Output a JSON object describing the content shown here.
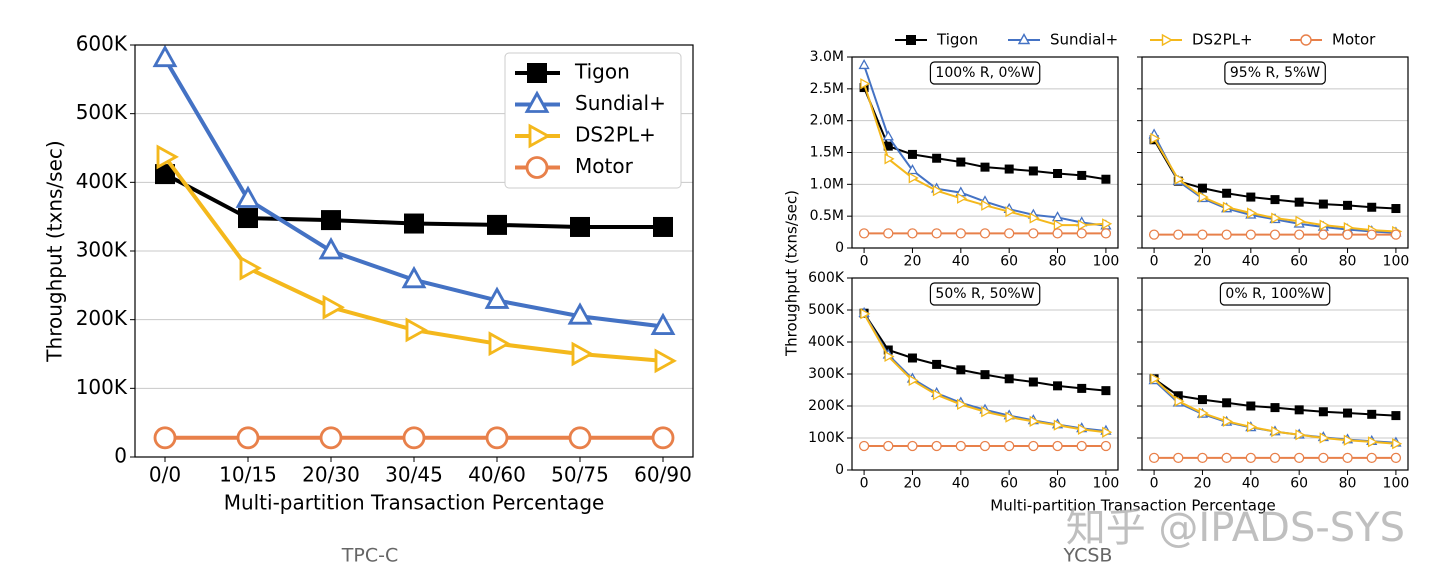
{
  "chart_data": [
    {
      "type": "line",
      "ylabel": "Throughput (txns/sec)",
      "xlabel": "Multi-partition Transaction Percentage",
      "caption": "TPC-C",
      "categories": [
        "0/0",
        "10/15",
        "20/30",
        "30/45",
        "40/60",
        "50/75",
        "60/90"
      ],
      "ylim": [
        0,
        600000
      ],
      "yticks": [
        0,
        {
          "value": 100000,
          "label": "100K"
        },
        {
          "value": 200000,
          "label": "200K"
        },
        {
          "value": 300000,
          "label": "300K"
        },
        {
          "value": 400000,
          "label": "400K"
        },
        {
          "value": 500000,
          "label": "500K"
        },
        {
          "value": 600000,
          "label": "600K"
        }
      ],
      "grid": true,
      "legend": "upper right",
      "series": [
        {
          "name": "Tigon",
          "color": "#000000",
          "marker": "square",
          "values": [
            412000,
            348000,
            345000,
            340000,
            338000,
            335000,
            335000
          ]
        },
        {
          "name": "Sundial+",
          "color": "#4472c4",
          "marker": "triangle-up",
          "values": [
            580000,
            375000,
            300000,
            258000,
            228000,
            205000,
            190000
          ]
        },
        {
          "name": "DS2PL+",
          "color": "#f4b81c",
          "marker": "triangle-right",
          "values": [
            437000,
            275000,
            218000,
            185000,
            165000,
            150000,
            140000
          ]
        },
        {
          "name": "Motor",
          "color": "#e8804a",
          "marker": "circle",
          "values": [
            28000,
            28000,
            28000,
            28000,
            28000,
            28000,
            28000
          ]
        }
      ]
    },
    {
      "type": "line",
      "ylabel": "Throughput (txns/sec)",
      "xlabel": "Multi-partition Transaction Percentage",
      "caption": "YCSB",
      "legend": "top",
      "grid": true,
      "x": [
        0,
        10,
        20,
        30,
        40,
        50,
        60,
        70,
        80,
        90,
        100
      ],
      "xlim": [
        -5,
        105
      ],
      "xticks": [
        0,
        20,
        40,
        60,
        80,
        100
      ],
      "series": [
        {
          "name": "Tigon",
          "color": "#000000",
          "marker": "square"
        },
        {
          "name": "Sundial+",
          "color": "#4472c4",
          "marker": "triangle-up"
        },
        {
          "name": "DS2PL+",
          "color": "#f4b81c",
          "marker": "triangle-right"
        },
        {
          "name": "Motor",
          "color": "#e8804a",
          "marker": "circle"
        }
      ],
      "rows": [
        {
          "ylim": [
            0,
            3000000
          ],
          "yticks": [
            0,
            {
              "value": 500000,
              "label": "0.5M"
            },
            {
              "value": 1000000,
              "label": "1.0M"
            },
            {
              "value": 1500000,
              "label": "1.5M"
            },
            {
              "value": 2000000,
              "label": "2.0M"
            },
            {
              "value": 2500000,
              "label": "2.5M"
            },
            {
              "value": 3000000,
              "label": "3.0M"
            }
          ],
          "panels": [
            {
              "title": "100% R, 0%W",
              "series": [
                {
                  "values": [
                    2520000,
                    1600000,
                    1470000,
                    1410000,
                    1350000,
                    1270000,
                    1240000,
                    1210000,
                    1170000,
                    1140000,
                    1080000
                  ]
                },
                {
                  "values": [
                    2870000,
                    1750000,
                    1220000,
                    930000,
                    870000,
                    730000,
                    610000,
                    520000,
                    480000,
                    400000,
                    350000
                  ]
                },
                {
                  "values": [
                    2580000,
                    1400000,
                    1100000,
                    900000,
                    780000,
                    670000,
                    570000,
                    470000,
                    360000,
                    360000,
                    380000
                  ]
                },
                {
                  "values": [
                    230000,
                    230000,
                    230000,
                    230000,
                    230000,
                    230000,
                    230000,
                    230000,
                    230000,
                    230000,
                    230000
                  ]
                }
              ]
            },
            {
              "title": "95% R, 5%W",
              "series": [
                {
                  "values": [
                    1700000,
                    1050000,
                    940000,
                    860000,
                    800000,
                    760000,
                    720000,
                    690000,
                    670000,
                    640000,
                    620000
                  ]
                },
                {
                  "values": [
                    1780000,
                    1050000,
                    780000,
                    620000,
                    520000,
                    450000,
                    380000,
                    330000,
                    290000,
                    260000,
                    240000
                  ]
                },
                {
                  "values": [
                    1720000,
                    1080000,
                    800000,
                    640000,
                    550000,
                    470000,
                    420000,
                    360000,
                    320000,
                    280000,
                    260000
                  ]
                },
                {
                  "values": [
                    210000,
                    210000,
                    210000,
                    210000,
                    210000,
                    210000,
                    210000,
                    210000,
                    210000,
                    210000,
                    210000
                  ]
                }
              ]
            }
          ]
        },
        {
          "ylim": [
            0,
            600000
          ],
          "yticks": [
            0,
            {
              "value": 100000,
              "label": "100K"
            },
            {
              "value": 200000,
              "label": "200K"
            },
            {
              "value": 300000,
              "label": "300K"
            },
            {
              "value": 400000,
              "label": "400K"
            },
            {
              "value": 500000,
              "label": "500K"
            },
            {
              "value": 600000,
              "label": "600K"
            }
          ],
          "panels": [
            {
              "title": "50% R, 50%W",
              "series": [
                {
                  "values": [
                    490000,
                    375000,
                    350000,
                    330000,
                    313000,
                    298000,
                    285000,
                    275000,
                    263000,
                    255000,
                    248000
                  ]
                },
                {
                  "values": [
                    490000,
                    360000,
                    285000,
                    240000,
                    210000,
                    188000,
                    170000,
                    155000,
                    142000,
                    130000,
                    122000
                  ]
                },
                {
                  "values": [
                    488000,
                    355000,
                    280000,
                    235000,
                    205000,
                    182000,
                    165000,
                    152000,
                    140000,
                    127000,
                    118000
                  ]
                },
                {
                  "values": [
                    75000,
                    75000,
                    75000,
                    75000,
                    75000,
                    75000,
                    75000,
                    75000,
                    75000,
                    75000,
                    75000
                  ]
                }
              ]
            },
            {
              "title": "0% R, 100%W",
              "series": [
                {
                  "values": [
                    285000,
                    232000,
                    220000,
                    210000,
                    200000,
                    195000,
                    188000,
                    182000,
                    178000,
                    174000,
                    170000
                  ]
                },
                {
                  "values": [
                    280000,
                    210000,
                    175000,
                    150000,
                    133000,
                    120000,
                    110000,
                    102000,
                    95000,
                    90000,
                    85000
                  ]
                },
                {
                  "values": [
                    285000,
                    215000,
                    178000,
                    152000,
                    135000,
                    120000,
                    110000,
                    100000,
                    93000,
                    88000,
                    82000
                  ]
                },
                {
                  "values": [
                    38000,
                    38000,
                    38000,
                    38000,
                    38000,
                    38000,
                    38000,
                    38000,
                    38000,
                    38000,
                    38000
                  ]
                }
              ]
            }
          ]
        }
      ]
    }
  ],
  "watermark": "知乎 @IPADS-SYS"
}
